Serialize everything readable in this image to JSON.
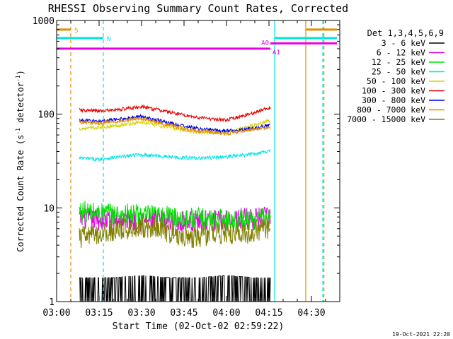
{
  "chart_data": {
    "type": "line",
    "title": "RHESSI Observing Summary Count Rates, Corrected",
    "xlabel": "Start Time (02-Oct-02 02:59:22)",
    "ylabel": "Corrected Count Rate (s",
    "ylabel_sup": "-1",
    "ylabel_tail": " detector",
    "ylabel_sup2": "-1",
    "ylabel_close": ")",
    "yscale": "log",
    "ylim": [
      1,
      1000
    ],
    "xlim_minutes": [
      0,
      100
    ],
    "x_ticks": [
      {
        "minute": 0,
        "label": "03:00"
      },
      {
        "minute": 15,
        "label": "03:15"
      },
      {
        "minute": 30,
        "label": "03:30"
      },
      {
        "minute": 45,
        "label": "03:45"
      },
      {
        "minute": 60,
        "label": "04:00"
      },
      {
        "minute": 75,
        "label": "04:15"
      },
      {
        "minute": 90,
        "label": "04:30"
      }
    ],
    "y_ticks": [
      {
        "value": 1,
        "label": "1"
      },
      {
        "value": 10,
        "label": "10"
      },
      {
        "value": 100,
        "label": "100"
      },
      {
        "value": 1000,
        "label": "1000"
      }
    ],
    "legend_title": "Det 1,3,4,5,6,9",
    "series": [
      {
        "name": "3 - 6 keV",
        "color": "#000000",
        "t": [
          8,
          20,
          30,
          40,
          50,
          60,
          70,
          75.5
        ],
        "values": [
          1.8,
          1.8,
          1.9,
          1.8,
          1.8,
          1.9,
          1.8,
          1.8
        ]
      },
      {
        "name": "6 - 12 keV",
        "color": "#e600e6",
        "t": [
          8,
          15,
          25,
          40,
          55,
          65,
          75.5
        ],
        "values": [
          7.8,
          7.5,
          7.4,
          7.2,
          7.3,
          7.6,
          7.8
        ]
      },
      {
        "name": "12 - 25 keV",
        "color": "#00e000",
        "t": [
          8,
          15,
          25,
          40,
          55,
          65,
          75.5
        ],
        "values": [
          9.2,
          8.8,
          8.5,
          8.0,
          7.5,
          7.3,
          7.8
        ]
      },
      {
        "name": "25 - 50 keV",
        "color": "#00e5e5",
        "t": [
          8,
          15,
          22,
          30,
          40,
          50,
          60,
          68,
          75.5
        ],
        "values": [
          34,
          33,
          35,
          37,
          35,
          34,
          35,
          37,
          41
        ]
      },
      {
        "name": "50 - 100 keV",
        "color": "#d4d400",
        "t": [
          8,
          15,
          22,
          30,
          40,
          50,
          60,
          68,
          75.5
        ],
        "values": [
          70,
          72,
          76,
          82,
          72,
          64,
          64,
          74,
          86
        ]
      },
      {
        "name": "100 - 300 keV",
        "color": "#e60000",
        "t": [
          8,
          15,
          22,
          30,
          40,
          50,
          60,
          68,
          75.5
        ],
        "values": [
          110,
          108,
          112,
          120,
          105,
          92,
          86,
          100,
          118
        ]
      },
      {
        "name": "300 - 800 keV",
        "color": "#0000e6",
        "t": [
          8,
          15,
          22,
          30,
          40,
          50,
          60,
          68,
          75.5
        ],
        "values": [
          86,
          84,
          88,
          95,
          80,
          70,
          66,
          70,
          76
        ]
      },
      {
        "name": "800 - 7000 keV",
        "color": "#e68a00",
        "t": [
          8,
          15,
          22,
          30,
          40,
          50,
          60,
          68,
          75.5
        ],
        "values": [
          82,
          80,
          84,
          90,
          76,
          66,
          62,
          68,
          72
        ]
      },
      {
        "name": "7000 - 15000 keV",
        "color": "#808000",
        "t": [
          8,
          15,
          25,
          35,
          42,
          50,
          55,
          65,
          75.5
        ],
        "values": [
          4.8,
          5.3,
          6.0,
          6.4,
          5.1,
          4.8,
          5.5,
          5.2,
          6.1
        ]
      }
    ],
    "flags": [
      {
        "label": "S",
        "color": "#e68a00",
        "level": 800,
        "segments": [
          [
            0,
            5
          ],
          [
            88,
            99
          ]
        ]
      },
      {
        "label": "N",
        "color": "#00e5e5",
        "level": 650,
        "segments": [
          [
            0,
            16.5
          ],
          [
            77,
            99
          ]
        ]
      },
      {
        "label": "A0",
        "color": "#e600e6",
        "level": 570,
        "segments": [
          [
            75.5,
            99
          ]
        ]
      },
      {
        "label": "A1",
        "color": "#e600e6",
        "level": 500,
        "segments": [
          [
            0,
            75.5
          ]
        ]
      }
    ],
    "vertical_markers": [
      {
        "minute": 5,
        "color": "#e68a00",
        "style": "dashed"
      },
      {
        "minute": 16.5,
        "color": "#00e5e5",
        "style": "dashed"
      },
      {
        "minute": 77,
        "color": "#00e5e5",
        "style": "solid"
      },
      {
        "minute": 88,
        "color": "#e68a00",
        "style": "solid"
      },
      {
        "minute": 94,
        "color": "#00e5e5",
        "style": "dashed"
      },
      {
        "minute": 94.4,
        "color": "#e68a00",
        "style": "dashed"
      }
    ],
    "timestamp": "19-Oct-2021 22:20"
  }
}
